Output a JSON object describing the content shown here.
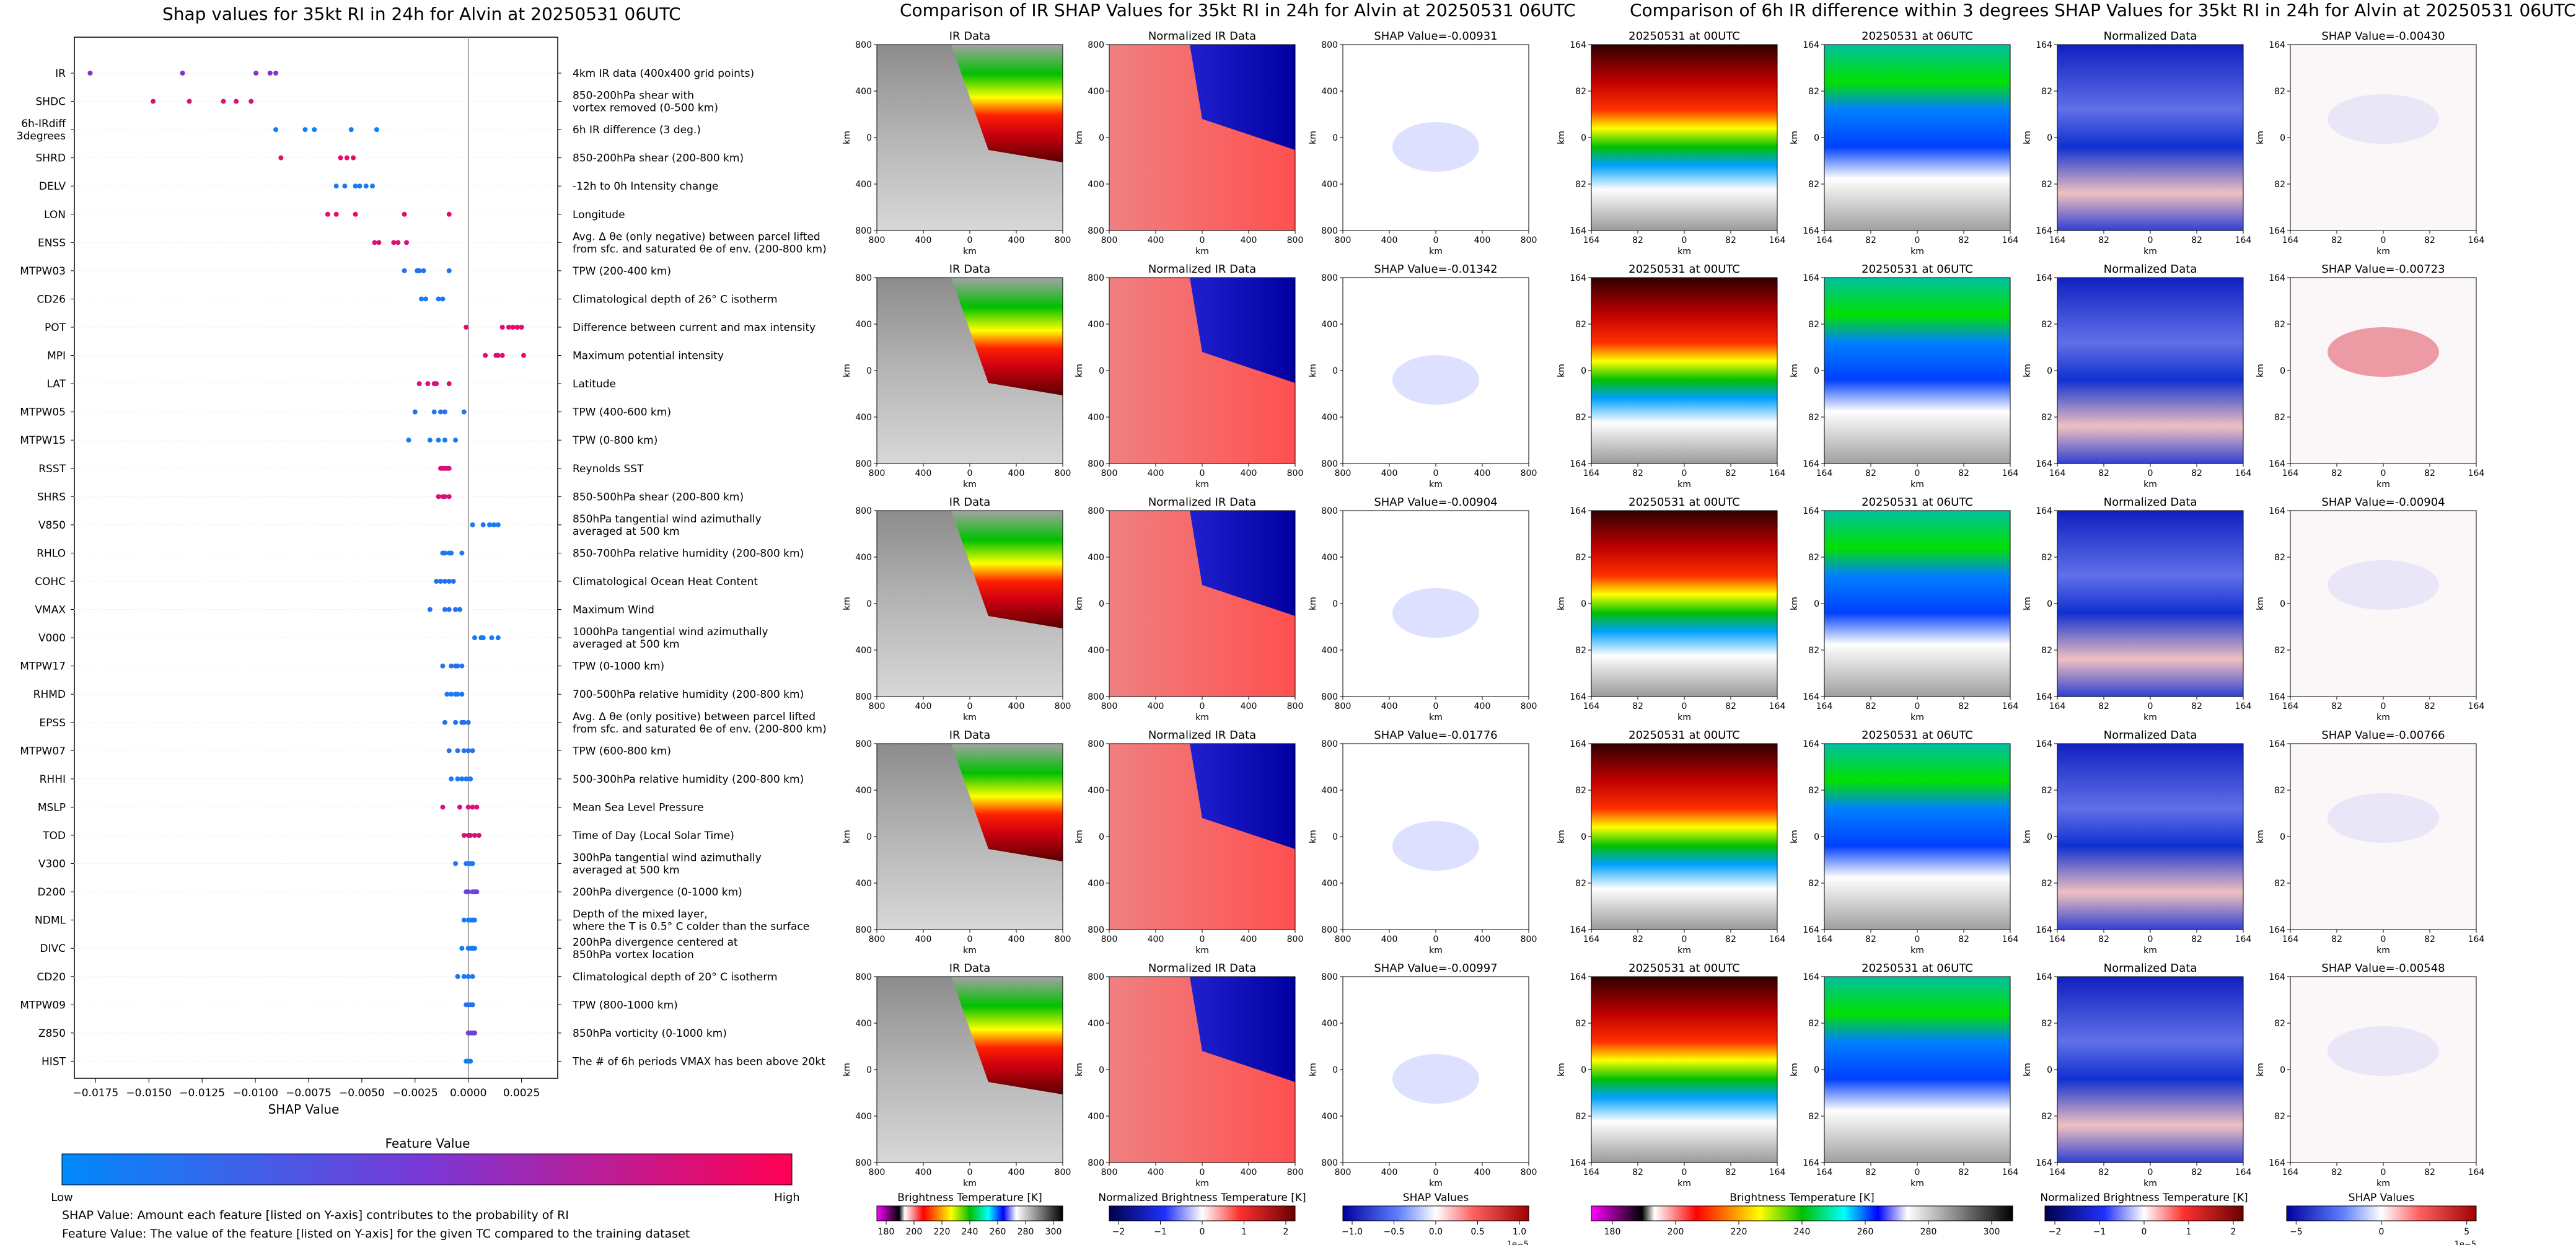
{
  "left_title": "Shap values for 35kt RI in 24h for Alvin at 20250531 06UTC",
  "ir_title": "Comparison of IR SHAP Values for 35kt RI in 24h for Alvin at 20250531 06UTC",
  "diff_title": "Comparison of 6h IR difference within 3 degrees SHAP Values for 35kt RI in 24h for Alvin at 20250531 06UTC",
  "notes": {
    "shap_value": "SHAP Value: Amount each feature [listed on Y-axis] contributes to the probability of RI",
    "feature_value": "Feature Value: The value of the feature [listed on Y-axis] for the given TC compared to the training dataset"
  },
  "panel_labels": {
    "ir_data": "IR Data",
    "normalized_ir": "Normalized IR Data",
    "time_a": "20250531 at 00UTC",
    "time_b": "20250531 at 06UTC",
    "normalized_data": "Normalized Data",
    "axis_km": "km"
  },
  "ir_shap_titles": [
    "SHAP Value=-0.00931",
    "SHAP Value=-0.01342",
    "SHAP Value=-0.00904",
    "SHAP Value=-0.01776",
    "SHAP Value=-0.00997"
  ],
  "diff_shap_titles": [
    "SHAP Value=-0.00430",
    "SHAP Value=-0.00723",
    "SHAP Value=-0.00904",
    "SHAP Value=-0.00766",
    "SHAP Value=-0.00548"
  ],
  "ir_ticks": [
    "800",
    "400",
    "0",
    "400",
    "800"
  ],
  "diff_ticks": [
    "164",
    "82",
    "0",
    "82",
    "164"
  ],
  "colorbars": {
    "brightness": {
      "label": "Brightness Temperature [K]",
      "ticks": [
        "180",
        "200",
        "220",
        "240",
        "260",
        "280",
        "300"
      ]
    },
    "brightness_diff": {
      "label": "Brightness Temperature [K]",
      "ticks": [
        "180",
        "200",
        "220",
        "240",
        "260",
        "280",
        "300"
      ]
    },
    "normalized": {
      "label": "Normalized Brightness Temperature [K]",
      "ticks": [
        "−2",
        "−1",
        "0",
        "1",
        "2"
      ]
    },
    "shap_ir": {
      "label": "SHAP Values",
      "ticks": [
        "−1.0",
        "−0.5",
        "0.0",
        "0.5",
        "1.0"
      ],
      "offset": "1e−5"
    },
    "shap_diff": {
      "label": "SHAP Values",
      "ticks": [
        "−5",
        "0",
        "5"
      ],
      "offset": "1e−5"
    },
    "feature": {
      "label": "Feature Value",
      "low": "Low",
      "high": "High",
      "colors": [
        "#008afb",
        "#7b38d6",
        "#ff0052"
      ]
    }
  },
  "chart_data": {
    "type": "scatter",
    "title": "Shap values for 35kt RI in 24h for Alvin at 20250531 06UTC",
    "xlabel": "SHAP Value",
    "xlim": [
      -0.0185,
      0.0042
    ],
    "xticks": [
      "−0.0175",
      "−0.0150",
      "−0.0125",
      "−0.0100",
      "−0.0075",
      "−0.0050",
      "−0.0025",
      "0.0000",
      "0.0025"
    ],
    "features": [
      {
        "name": "IR",
        "desc": "4km IR data (400x400 grid points)",
        "fv": 0.55,
        "points": [
          -0.01776,
          -0.01342,
          -0.00997,
          -0.00931,
          -0.00904
        ]
      },
      {
        "name": "SHDC",
        "desc": "850-200hPa shear with\nvortex removed (0-500 km)",
        "fv": 0.85,
        "points": [
          -0.0148,
          -0.0131,
          -0.0115,
          -0.0109,
          -0.0102
        ]
      },
      {
        "name": "6h-IRdiff\n3degrees",
        "desc": "6h IR difference (3 deg.)",
        "fv": 0.05,
        "points": [
          -0.00904,
          -0.00766,
          -0.00723,
          -0.0055,
          -0.0043
        ]
      },
      {
        "name": "SHRD",
        "desc": "850-200hPa shear (200-800 km)",
        "fv": 0.9,
        "points": [
          -0.0088,
          -0.006,
          -0.0057,
          -0.0054
        ]
      },
      {
        "name": "DELV",
        "desc": "-12h to 0h Intensity change",
        "fv": 0.1,
        "points": [
          -0.0062,
          -0.0058,
          -0.0053,
          -0.0051,
          -0.0048,
          -0.0045
        ]
      },
      {
        "name": "LON",
        "desc": "Longitude",
        "fv": 0.9,
        "points": [
          -0.0066,
          -0.0062,
          -0.0053,
          -0.003,
          -0.0009
        ]
      },
      {
        "name": "ENSS",
        "desc": "Avg. Δ θe (only negative) between parcel lifted\nfrom sfc. and saturated θe of env. (200-800 km)",
        "fv": 0.85,
        "points": [
          -0.0044,
          -0.0042,
          -0.0035,
          -0.0033,
          -0.0029
        ]
      },
      {
        "name": "MTPW03",
        "desc": "TPW (200-400 km)",
        "fv": 0.15,
        "points": [
          -0.003,
          -0.0024,
          -0.0023,
          -0.0021,
          -0.0009
        ]
      },
      {
        "name": "CD26",
        "desc": "Climatological depth of 26° C isotherm",
        "fv": 0.1,
        "points": [
          -0.0022,
          -0.002,
          -0.0014,
          -0.0012
        ]
      },
      {
        "name": "POT",
        "desc": "Difference between current and max intensity",
        "fv": 0.9,
        "points": [
          -0.0001,
          0.0016,
          0.0019,
          0.0021,
          0.0023,
          0.0025
        ]
      },
      {
        "name": "MPI",
        "desc": "Maximum potential intensity",
        "fv": 0.9,
        "points": [
          0.0008,
          0.0013,
          0.0014,
          0.0016,
          0.0026
        ]
      },
      {
        "name": "LAT",
        "desc": "Latitude",
        "fv": 0.85,
        "points": [
          -0.0023,
          -0.0019,
          -0.0016,
          -0.0015,
          -0.0009
        ]
      },
      {
        "name": "MTPW05",
        "desc": "TPW (400-600 km)",
        "fv": 0.15,
        "points": [
          -0.0025,
          -0.0016,
          -0.0013,
          -0.0011,
          -0.0002
        ]
      },
      {
        "name": "MTPW15",
        "desc": "TPW (0-800 km)",
        "fv": 0.1,
        "points": [
          -0.0028,
          -0.0018,
          -0.0014,
          -0.0011,
          -0.0006
        ]
      },
      {
        "name": "RSST",
        "desc": "Reynolds SST",
        "fv": 0.85,
        "points": [
          -0.0013,
          -0.0012,
          -0.0011,
          -0.001,
          -0.0009
        ]
      },
      {
        "name": "SHRS",
        "desc": "850-500hPa shear (200-800 km)",
        "fv": 0.85,
        "points": [
          -0.0014,
          -0.0012,
          -0.0011,
          -0.0009
        ]
      },
      {
        "name": "V850",
        "desc": "850hPa tangential wind azimuthally\naveraged at 500 km",
        "fv": 0.1,
        "points": [
          0.0002,
          0.0007,
          0.001,
          0.0012,
          0.0014
        ]
      },
      {
        "name": "RHLO",
        "desc": "850-700hPa relative humidity (200-800 km)",
        "fv": 0.1,
        "points": [
          -0.0012,
          -0.0011,
          -0.0009,
          -0.0008,
          -0.0003
        ]
      },
      {
        "name": "COHC",
        "desc": "Climatological Ocean Heat Content",
        "fv": 0.15,
        "points": [
          -0.0015,
          -0.0013,
          -0.0011,
          -0.0009,
          -0.0007
        ]
      },
      {
        "name": "VMAX",
        "desc": "Maximum Wind",
        "fv": 0.15,
        "points": [
          -0.0018,
          -0.0011,
          -0.0009,
          -0.0006,
          -0.0004
        ]
      },
      {
        "name": "V000",
        "desc": "1000hPa tangential wind azimuthally\naveraged at 500 km",
        "fv": 0.1,
        "points": [
          0.0003,
          0.0006,
          0.0007,
          0.0011,
          0.0014
        ]
      },
      {
        "name": "MTPW17",
        "desc": "TPW (0-1000 km)",
        "fv": 0.15,
        "points": [
          -0.0012,
          -0.0008,
          -0.0006,
          -0.0005,
          -0.0003
        ]
      },
      {
        "name": "RHMD",
        "desc": "700-500hPa relative humidity (200-800 km)",
        "fv": 0.1,
        "points": [
          -0.001,
          -0.0008,
          -0.0006,
          -0.0005,
          -0.0003
        ]
      },
      {
        "name": "EPSS",
        "desc": "Avg. Δ θe (only positive) between parcel lifted\nfrom sfc. and saturated θe of env. (200-800 km)",
        "fv": 0.15,
        "points": [
          -0.0011,
          -0.0006,
          -0.0003,
          -0.0002,
          0.0
        ]
      },
      {
        "name": "MTPW07",
        "desc": "TPW (600-800 km)",
        "fv": 0.15,
        "points": [
          -0.0009,
          -0.0005,
          -0.0002,
          0.0,
          0.0002
        ]
      },
      {
        "name": "RHHI",
        "desc": "500-300hPa relative humidity (200-800 km)",
        "fv": 0.1,
        "points": [
          -0.0008,
          -0.0005,
          -0.0003,
          -0.0001,
          0.0001
        ]
      },
      {
        "name": "MSLP",
        "desc": "Mean Sea Level Pressure",
        "fv": 0.85,
        "points": [
          -0.0012,
          -0.0004,
          0.0,
          0.0002,
          0.0004
        ]
      },
      {
        "name": "TOD",
        "desc": "Time of Day (Local Solar Time)",
        "fv": 0.85,
        "points": [
          -0.0002,
          0.0,
          0.0001,
          0.0003,
          0.0005
        ]
      },
      {
        "name": "V300",
        "desc": "300hPa tangential wind azimuthally\naveraged at 500 km",
        "fv": 0.1,
        "points": [
          -0.0006,
          -0.0001,
          0.0,
          0.0001,
          0.0002
        ]
      },
      {
        "name": "D200",
        "desc": "200hPa divergence (0-1000 km)",
        "fv": 0.45,
        "points": [
          -0.0001,
          0.0,
          0.0002,
          0.0003,
          0.0004
        ]
      },
      {
        "name": "NDML",
        "desc": "Depth of the mixed layer,\nwhere the T is 0.5° C colder than the surface",
        "fv": 0.1,
        "points": [
          -0.0002,
          0.0,
          0.0001,
          0.0002,
          0.0003
        ]
      },
      {
        "name": "DIVC",
        "desc": "200hPa divergence centered at\n850hPa vortex location",
        "fv": 0.1,
        "points": [
          -0.0003,
          0.0,
          0.0001,
          0.0002,
          0.0003
        ]
      },
      {
        "name": "CD20",
        "desc": "Climatological depth of 20° C isotherm",
        "fv": 0.1,
        "points": [
          -0.0005,
          -0.0002,
          0.0,
          0.0002
        ]
      },
      {
        "name": "MTPW09",
        "desc": "TPW (800-1000 km)",
        "fv": 0.15,
        "points": [
          -0.0001,
          0.0,
          0.0001,
          0.0002
        ]
      },
      {
        "name": "Z850",
        "desc": "850hPa vorticity (0-1000 km)",
        "fv": 0.45,
        "points": [
          0.0,
          0.0001,
          0.0002,
          0.0003
        ]
      },
      {
        "name": "HIST",
        "desc": "The # of 6h periods VMAX has been above 20kt",
        "fv": 0.1,
        "points": [
          -0.0001,
          0.0,
          0.0001
        ]
      }
    ]
  }
}
